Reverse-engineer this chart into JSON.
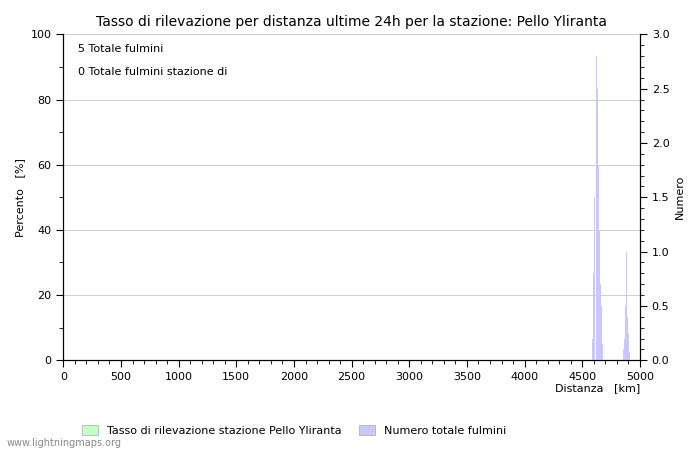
{
  "title": "Tasso di rilevazione per distanza ultime 24h per la stazione: Pello Yliranta",
  "xlabel": "Distanza   [km]",
  "ylabel_left": "Percento   [%]",
  "ylabel_right": "Numero",
  "xlim": [
    0,
    5000
  ],
  "ylim_left": [
    0,
    100
  ],
  "ylim_right": [
    0,
    3.0
  ],
  "yticks_left": [
    0,
    20,
    40,
    60,
    80,
    100
  ],
  "yticks_right": [
    0.0,
    0.5,
    1.0,
    1.5,
    2.0,
    2.5,
    3.0
  ],
  "xticks": [
    0,
    500,
    1000,
    1500,
    2000,
    2500,
    3000,
    3500,
    4000,
    4500,
    5000
  ],
  "annotation_line1": "5 Totale fulmini",
  "annotation_line2": "0 Totale fulmini stazione di",
  "legend_label_green": "Tasso di rilevazione stazione Pello Yliranta",
  "legend_label_blue": "Numero totale fulmini",
  "watermark": "www.lightningmaps.org",
  "background_color": "#ffffff",
  "plot_bg_color": "#ffffff",
  "grid_color": "#bbbbbb",
  "bar_color_blue": "#c8c8ff",
  "bar_color_green": "#c8ffc8",
  "title_fontsize": 10,
  "axis_fontsize": 8,
  "tick_fontsize": 8,
  "annotation_fontsize": 8,
  "legend_fontsize": 8,
  "watermark_fontsize": 7,
  "spike1": {
    "4620": 3.0,
    "4625": 2.8,
    "4630": 2.5,
    "4635": 2.2,
    "4640": 1.8,
    "4645": 1.5,
    "4650": 1.2,
    "4655": 0.9,
    "4660": 0.7,
    "4665": 0.5,
    "4670": 0.3,
    "4675": 0.15,
    "4610": 2.2,
    "4605": 1.5,
    "4600": 0.8,
    "4595": 0.4,
    "4590": 0.2
  },
  "spike2": {
    "4860": 0.1,
    "4865": 0.2,
    "4870": 0.3,
    "4875": 0.5,
    "4880": 0.7,
    "4885": 1.0,
    "4890": 0.7,
    "4895": 0.4,
    "4900": 0.25,
    "4905": 0.15,
    "4910": 0.08
  }
}
